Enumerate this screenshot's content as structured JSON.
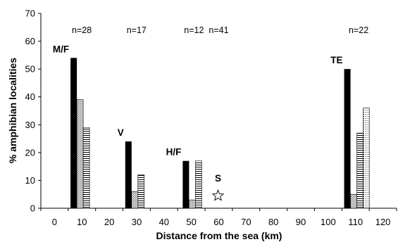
{
  "chart_data": {
    "type": "bar",
    "xlabel": "Distance from the sea (km)",
    "ylabel": "% amphibian localities",
    "xlim": [
      -5,
      125
    ],
    "ylim": [
      0,
      70
    ],
    "x_ticks": [
      0,
      10,
      20,
      30,
      40,
      50,
      60,
      70,
      80,
      90,
      100,
      110,
      120
    ],
    "y_ticks": [
      0,
      10,
      20,
      30,
      40,
      50,
      60,
      70
    ],
    "series_patterns": [
      "solid",
      "dotted",
      "horizontal-lines",
      "stippled"
    ],
    "groups": [
      {
        "label": "M/F",
        "sample": "n=28",
        "x": 7,
        "values": [
          54,
          39,
          29
        ]
      },
      {
        "label": "V",
        "sample": "n=17",
        "x": 27,
        "values": [
          24,
          6,
          12
        ]
      },
      {
        "label": "H/F",
        "sample": "n=12",
        "x": 48,
        "values": [
          17,
          3,
          17
        ]
      },
      {
        "label": "S",
        "sample": "n=41",
        "x": 60,
        "values": [],
        "marker": "star",
        "marker_value": 4.5
      },
      {
        "label": "TE",
        "sample": "n=22",
        "x": 107,
        "values": [
          50,
          5,
          27,
          36
        ]
      }
    ]
  }
}
